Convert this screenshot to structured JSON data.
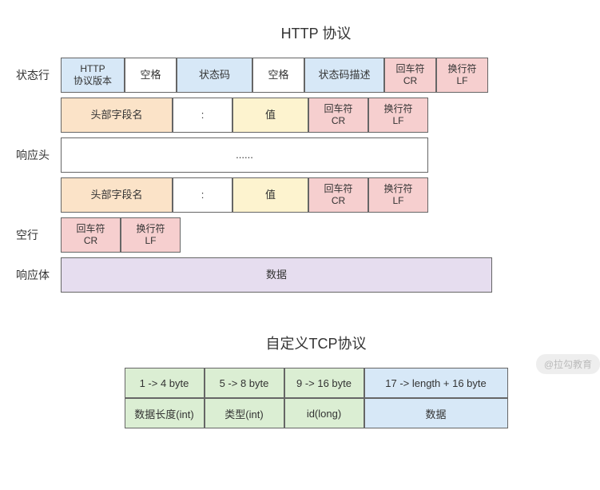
{
  "titles": {
    "http": "HTTP 协议",
    "tcp": "自定义TCP协议"
  },
  "rowLabels": {
    "statusLine": "状态行",
    "headers": "响应头",
    "blankLine": "空行",
    "body": "响应体"
  },
  "http": {
    "statusLine": {
      "version": "HTTP\n协议版本",
      "space1": "空格",
      "statusCode": "状态码",
      "space2": "空格",
      "statusDesc": "状态码描述",
      "cr": "回车符\nCR",
      "lf": "换行符\nLF"
    },
    "headerRow": {
      "name": "头部字段名",
      "colon": ":",
      "value": "值",
      "cr": "回车符\nCR",
      "lf": "换行符\nLF"
    },
    "ellipsis": "......",
    "blank": {
      "cr": "回车符\nCR",
      "lf": "换行符\nLF"
    },
    "body": "数据"
  },
  "tcp": {
    "header": {
      "c1": "1 -> 4 byte",
      "c2": "5 -> 8 byte",
      "c3": "9 -> 16 byte",
      "c4": "17 -> length + 16 byte"
    },
    "row2": {
      "c1": "数据长度(int)",
      "c2": "类型(int)",
      "c3": "id(long)",
      "c4": "数据"
    }
  },
  "colors": {
    "blue": "#d7e8f7",
    "white": "#ffffff",
    "red": "#f6cfcf",
    "orange": "#fbe3c8",
    "yellow": "#fdf3cf",
    "purple": "#e6ddef",
    "green": "#dbeed3",
    "border": "#666666"
  },
  "watermark": "@拉勾教育"
}
